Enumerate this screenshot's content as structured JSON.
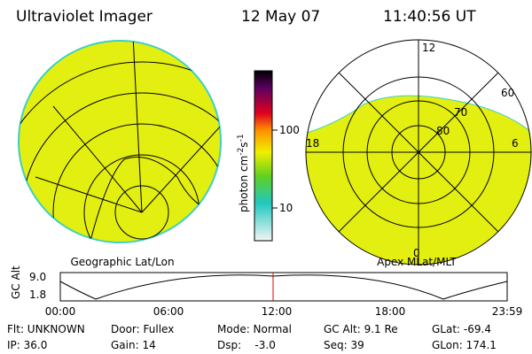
{
  "header": {
    "title": "Ultraviolet Imager",
    "date": "12 May 07",
    "time": "11:40:56 UT"
  },
  "colorbar": {
    "label": {
      "base": "photon cm",
      "exp1": "-2",
      "unit2": "s",
      "exp2": "-1"
    },
    "ticks": [
      "100",
      "10"
    ]
  },
  "left_map": {
    "label": "Geographic Lat/Lon"
  },
  "right_map": {
    "label": "Apex MLat/MLT",
    "mlt_labels": [
      "12",
      "6",
      "18",
      "0"
    ],
    "lat_labels": [
      "60",
      "70",
      "80"
    ]
  },
  "altitude_plot": {
    "ylabel": "GC Alt",
    "yticks": [
      "9.0",
      "1.8"
    ],
    "xticks": [
      "00:00",
      "06:00",
      "12:00",
      "18:00",
      "23:59"
    ]
  },
  "info": {
    "rows": [
      [
        "Flt: UNKNOWN",
        "Door: Fullex",
        "Mode: Normal",
        "GC Alt: 9.1 Re",
        "GLat: -69.4"
      ],
      [
        "IP: 36.0",
        "Gain: 14",
        "Dsp:    -3.0",
        "Seq: 39",
        "GLon: 174.1"
      ]
    ]
  }
}
